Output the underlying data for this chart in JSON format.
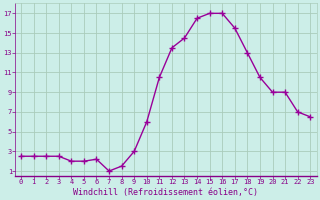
{
  "x": [
    0,
    1,
    2,
    3,
    4,
    5,
    6,
    7,
    8,
    9,
    10,
    11,
    12,
    13,
    14,
    15,
    16,
    17,
    18,
    19,
    20,
    21,
    22,
    23
  ],
  "y": [
    2.5,
    2.5,
    2.5,
    2.5,
    2.0,
    2.0,
    2.2,
    1.0,
    1.5,
    3.0,
    6.0,
    10.5,
    13.5,
    14.5,
    16.5,
    17.0,
    17.0,
    15.5,
    13.0,
    10.5,
    9.0,
    9.0,
    7.0,
    6.5
  ],
  "line_color": "#990099",
  "marker": "+",
  "marker_size": 4,
  "marker_linewidth": 1.0,
  "linewidth": 1.0,
  "xlabel": "Windchill (Refroidissement éolien,°C)",
  "ylabel": "",
  "xlim": [
    -0.5,
    23.5
  ],
  "ylim": [
    0.5,
    18.0
  ],
  "yticks": [
    1,
    3,
    5,
    7,
    9,
    11,
    13,
    15,
    17
  ],
  "xticks": [
    0,
    1,
    2,
    3,
    4,
    5,
    6,
    7,
    8,
    9,
    10,
    11,
    12,
    13,
    14,
    15,
    16,
    17,
    18,
    19,
    20,
    21,
    22,
    23
  ],
  "background_color": "#cceee8",
  "grid_color": "#aaccbb",
  "tick_label_color": "#880088",
  "xlabel_color": "#880088",
  "tick_fontsize": 5.0,
  "xlabel_fontsize": 6.0
}
